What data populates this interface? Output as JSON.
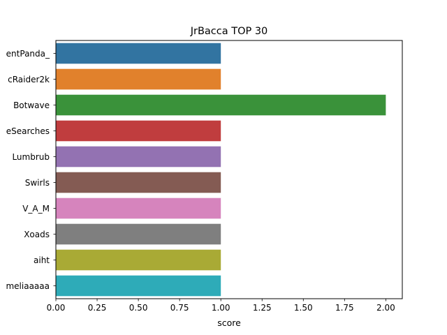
{
  "chart_data": {
    "type": "bar",
    "orientation": "horizontal",
    "title": "JrBacca TOP 30",
    "xlabel": "score",
    "ylabel": "",
    "categories": [
      "entPanda_",
      "cRaider2k",
      "Botwave",
      "eSearches",
      "Lumbrub",
      "Swirls",
      "V_A_M",
      "Xoads",
      "aiht",
      "meliaaaaa"
    ],
    "values": [
      1,
      1,
      2,
      1,
      1,
      1,
      1,
      1,
      1,
      1
    ],
    "colors": [
      "#3274a1",
      "#e1812c",
      "#3a923a",
      "#c03d3e",
      "#9372b2",
      "#845b53",
      "#d684bd",
      "#7f7f7f",
      "#a9aa35",
      "#2eabb8"
    ],
    "xlim": [
      0,
      2.1
    ],
    "xticks": [
      "0.00",
      "0.25",
      "0.50",
      "0.75",
      "1.00",
      "1.25",
      "1.50",
      "1.75",
      "2.00"
    ],
    "grid": false,
    "legend": "none"
  }
}
